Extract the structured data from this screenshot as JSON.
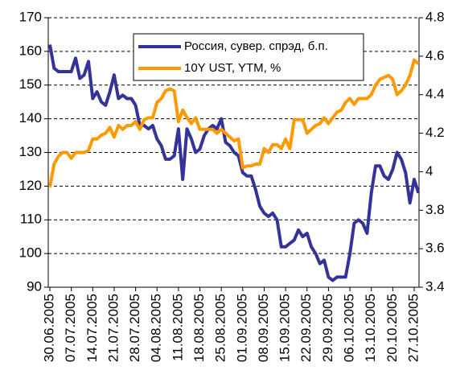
{
  "chart_data": {
    "type": "line",
    "categories": [
      "30.06.2005",
      null,
      null,
      null,
      null,
      "07.07.2005",
      null,
      null,
      null,
      null,
      "14.07.2005",
      null,
      null,
      null,
      null,
      "21.07.2005",
      null,
      null,
      null,
      null,
      "28.07.2005",
      null,
      null,
      null,
      null,
      "04.08.2005",
      null,
      null,
      null,
      null,
      "11.08.2005",
      null,
      null,
      null,
      null,
      "18.08.2005",
      null,
      null,
      null,
      null,
      "25.08.2005",
      null,
      null,
      null,
      null,
      "01.09.2005",
      null,
      null,
      null,
      null,
      "08.09.2005",
      null,
      null,
      null,
      null,
      "15.09.2005",
      null,
      null,
      null,
      null,
      "22.09.2005",
      null,
      null,
      null,
      null,
      "29.09.2005",
      null,
      null,
      null,
      null,
      "06.10.2005",
      null,
      null,
      null,
      null,
      "13.10.2005",
      null,
      null,
      null,
      null,
      "20.10.2005",
      null,
      null,
      null,
      null,
      "27.10.2005",
      null
    ],
    "series": [
      {
        "name": "Россия, сувер. спрэд, б.п.",
        "color": "#333399",
        "axis": "y",
        "values": [
          162,
          155,
          154,
          154,
          154,
          154,
          158,
          152,
          153,
          157,
          146,
          148,
          145,
          144,
          148,
          153,
          146,
          147,
          146,
          146,
          144,
          138,
          138,
          137,
          138,
          134,
          132,
          128,
          128,
          129,
          137,
          122,
          137,
          134,
          130,
          131,
          135,
          137,
          138,
          137,
          140,
          133,
          132,
          130,
          129,
          124,
          123,
          123,
          119,
          114,
          112,
          111,
          112,
          110,
          102,
          102,
          103,
          104,
          107,
          105,
          106,
          102,
          100,
          97,
          98,
          93,
          92,
          93,
          93,
          93,
          100,
          109,
          110,
          109,
          106,
          118,
          126,
          126,
          123,
          122,
          125,
          130,
          128,
          124,
          115,
          122,
          118
        ]
      },
      {
        "name": "10Y UST, YTM, %",
        "color": "#ff9900",
        "axis": "y2",
        "values": [
          3.92,
          4.04,
          4.08,
          4.1,
          4.1,
          4.07,
          4.1,
          4.1,
          4.1,
          4.11,
          4.17,
          4.17,
          4.19,
          4.2,
          4.23,
          4.18,
          4.24,
          4.22,
          4.24,
          4.24,
          4.26,
          4.22,
          4.27,
          4.28,
          4.28,
          4.36,
          4.38,
          4.42,
          4.43,
          4.42,
          4.26,
          4.32,
          4.28,
          4.25,
          4.28,
          4.22,
          4.22,
          4.22,
          4.22,
          4.2,
          4.22,
          4.2,
          4.18,
          4.16,
          4.17,
          4.02,
          4.03,
          4.03,
          4.04,
          4.04,
          4.12,
          4.1,
          4.14,
          4.14,
          4.12,
          4.17,
          4.12,
          4.27,
          4.27,
          4.27,
          4.2,
          4.22,
          4.24,
          4.25,
          4.28,
          4.25,
          4.28,
          4.31,
          4.32,
          4.36,
          4.38,
          4.35,
          4.38,
          4.38,
          4.38,
          4.4,
          4.45,
          4.48,
          4.49,
          4.5,
          4.48,
          4.4,
          4.42,
          4.45,
          4.5,
          4.58,
          4.56
        ]
      }
    ],
    "ylim": [
      90,
      170
    ],
    "yticks": [
      90,
      100,
      110,
      120,
      130,
      140,
      150,
      160,
      170
    ],
    "y2lim": [
      3.4,
      4.8
    ],
    "y2ticks": [
      3.4,
      3.6,
      3.8,
      4,
      4.2,
      4.4,
      4.6,
      4.8
    ],
    "grid": true,
    "legend": "top"
  }
}
